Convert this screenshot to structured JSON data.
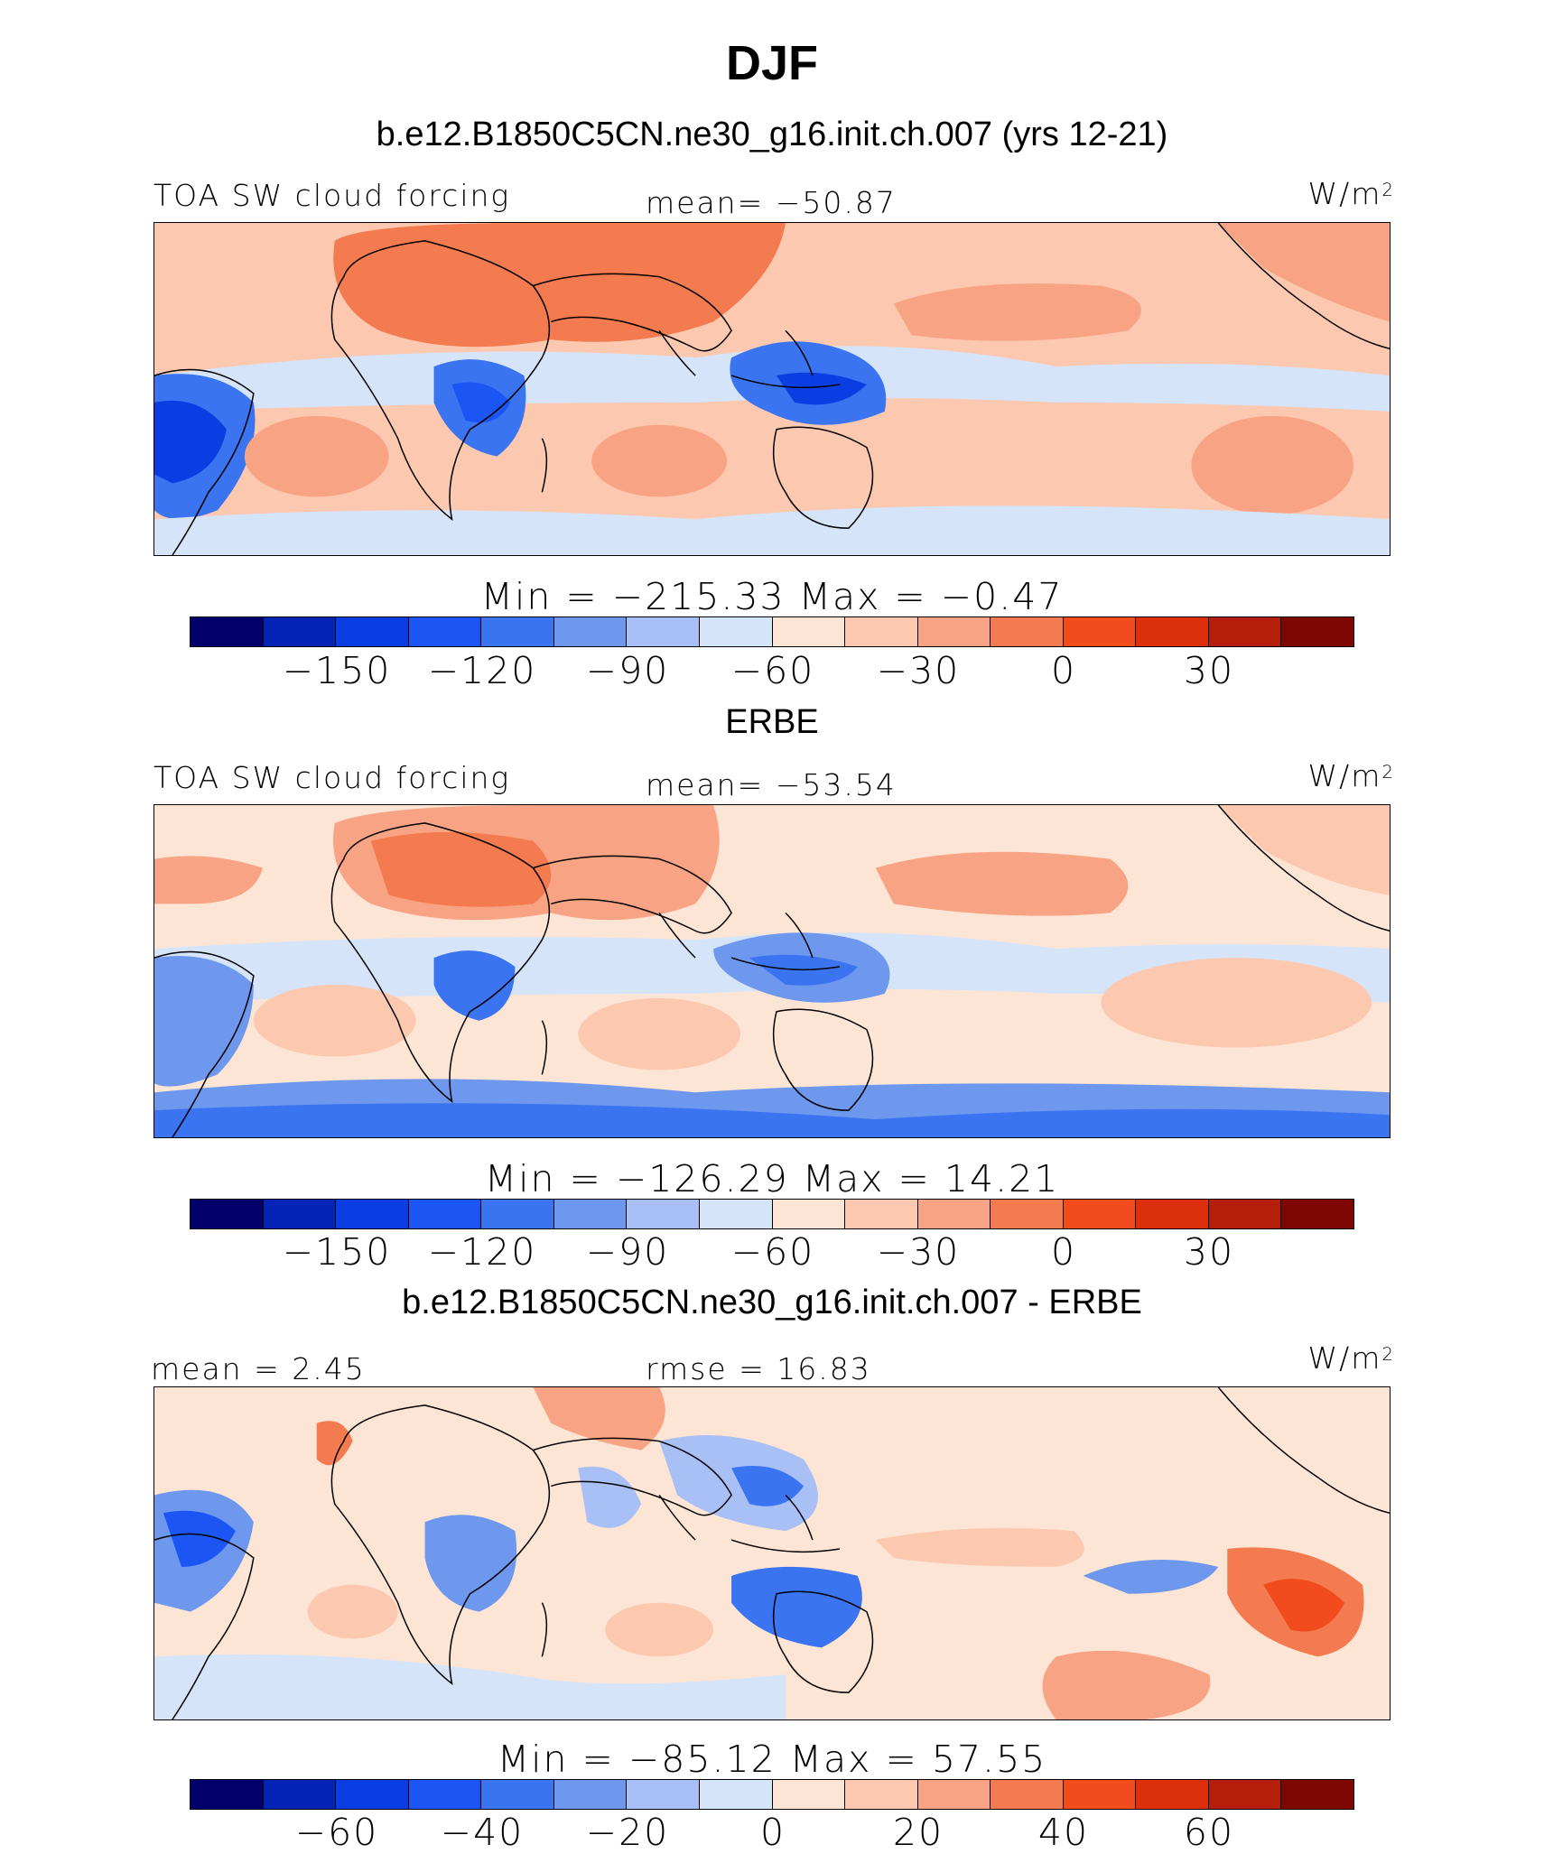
{
  "title": "DJF",
  "colors": [
    "#03006c",
    "#0424b8",
    "#0a3ee3",
    "#1b55f4",
    "#3a74f0",
    "#6e97ee",
    "#a8c0f5",
    "#d6e4fa",
    "#fde5d6",
    "#fcc8b0",
    "#f8a484",
    "#f47a4f",
    "#f24b1e",
    "#dc2f0b",
    "#b41e0a",
    "#7e0703"
  ],
  "panels": [
    {
      "title": "b.e12.B1850C5CN.ne30_g16.init.ch.007 (yrs 12-21)",
      "left_label": "TOA SW cloud forcing",
      "center_label": "mean= −50.87",
      "units": "W/m",
      "units_sup": "2",
      "stats": "Min  =  −215.33  Max  =   −0.47",
      "colorbar_ticks": [
        "−150",
        "−120",
        "−90",
        "−60",
        "−30",
        "0",
        "30"
      ],
      "map_variant": "model"
    },
    {
      "title": "ERBE",
      "left_label": "TOA SW cloud forcing",
      "center_label": "mean= −53.54",
      "units": "W/m",
      "units_sup": "2",
      "stats": "Min  =  −126.29  Max  =   14.21",
      "colorbar_ticks": [
        "−150",
        "−120",
        "−90",
        "−60",
        "−30",
        "0",
        "30"
      ],
      "map_variant": "obs"
    },
    {
      "title": "b.e12.B1850C5CN.ne30_g16.init.ch.007 - ERBE",
      "left_label": "mean  =    2.45",
      "center_label": "rmse  =   16.83",
      "units": "W/m",
      "units_sup": "2",
      "stats": "Min  =  −85.12  Max  =   57.55",
      "colorbar_ticks": [
        "−60",
        "−40",
        "−20",
        "0",
        "20",
        "40",
        "60"
      ],
      "map_variant": "diff"
    }
  ]
}
